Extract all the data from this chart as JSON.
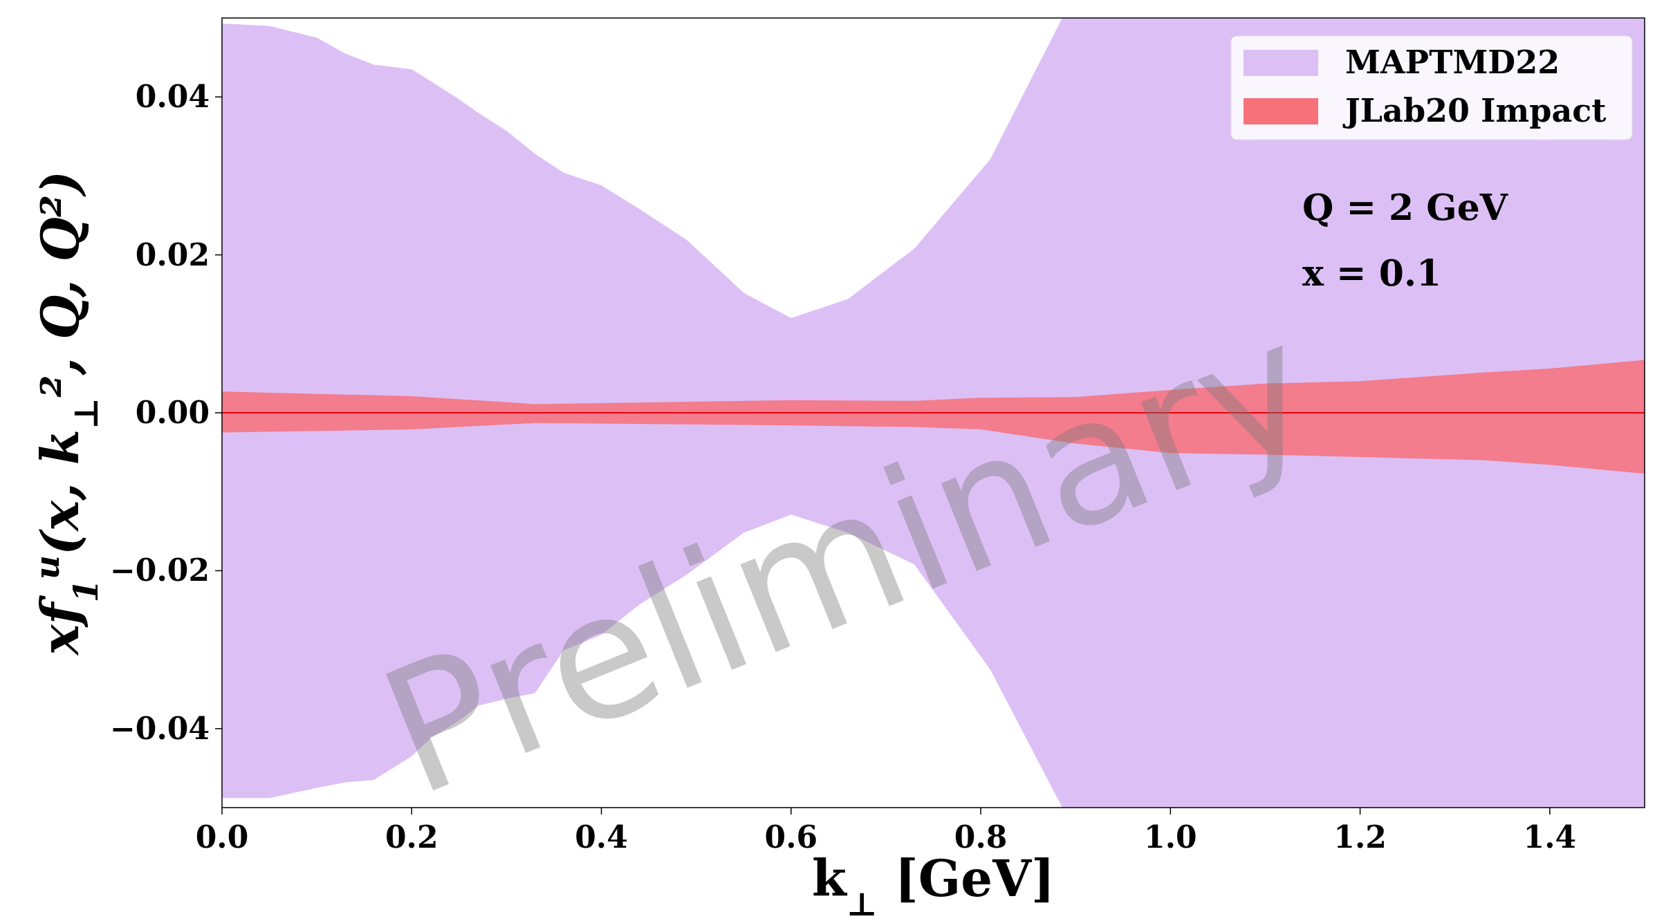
{
  "chart_data": {
    "type": "area",
    "xlabel": "k$_{⊥}$ [GeV]",
    "ylabel": "xf$_{1}$$^{u}$(x, k$_{⊥}$², Q, Q²)",
    "xlim": [
      0,
      1.5
    ],
    "ylim": [
      -0.05,
      0.05
    ],
    "xticks": [
      {
        "value": 0,
        "label": "0.0"
      },
      0.2,
      0.4,
      0.6,
      0.8,
      {
        "value": 1,
        "label": "1.0"
      },
      1.2,
      1.4
    ],
    "yticks": [
      {
        "value": -0.04,
        "label": "−0.04"
      },
      {
        "value": -0.02,
        "label": "−0.02"
      },
      {
        "value": 0,
        "label": "0.00"
      },
      {
        "value": 0.02,
        "label": "0.02"
      },
      {
        "value": 0.04,
        "label": "0.04"
      }
    ],
    "legend": "top right",
    "grid": false,
    "ref_lines": [
      {
        "axis": "y",
        "value": 0,
        "color": "#e8000b"
      }
    ],
    "annotations": [
      "Q = 2 GeV",
      "x = 0.1",
      "Preliminary"
    ],
    "series": [
      {
        "name": "MAPTMD22",
        "color": "#dcc0f5",
        "x": [
          0,
          0.05,
          0.1,
          0.13,
          0.16,
          0.2,
          0.22,
          0.25,
          0.27,
          0.3,
          0.33,
          0.36,
          0.4,
          0.44,
          0.49,
          0.55,
          0.6,
          0.66,
          0.73,
          0.81,
          0.886,
          1.0,
          1.2,
          1.5
        ],
        "values": [
          null,
          null,
          null,
          null,
          null,
          null,
          null,
          null,
          null,
          null,
          null,
          null,
          null,
          null,
          null,
          null,
          null,
          null,
          null,
          null,
          null,
          null,
          null,
          null
        ],
        "upper": [
          0.0493,
          0.049,
          0.0475,
          0.0455,
          0.0441,
          0.0435,
          0.042,
          0.0397,
          0.038,
          0.0357,
          0.0328,
          0.0304,
          0.0288,
          0.0258,
          0.0219,
          0.0152,
          0.012,
          0.0144,
          0.0208,
          0.0321,
          0.05,
          0.05,
          0.05,
          0.05
        ],
        "lower": [
          -0.0488,
          -0.0488,
          -0.0475,
          -0.0468,
          -0.0465,
          -0.0435,
          -0.0412,
          -0.039,
          -0.0371,
          -0.0362,
          -0.0355,
          -0.0301,
          -0.0281,
          -0.0243,
          -0.0205,
          -0.0152,
          -0.0129,
          -0.0152,
          -0.0192,
          -0.0325,
          -0.05,
          -0.05,
          -0.05,
          -0.05
        ]
      },
      {
        "name": "JLab20 Impact",
        "color": "#f7707a",
        "x": [
          0,
          0.2,
          0.33,
          0.6,
          0.73,
          0.8,
          0.9,
          1.0,
          1.1,
          1.2,
          1.33,
          1.4,
          1.5
        ],
        "values": [
          null,
          null,
          null,
          null,
          null,
          null,
          null,
          null,
          null,
          null,
          null,
          null,
          null
        ],
        "upper": [
          0.0027,
          0.0021,
          0.0011,
          0.0016,
          0.0015,
          0.0019,
          0.002,
          0.0029,
          0.0037,
          0.004,
          0.0051,
          0.0056,
          0.0067
        ],
        "lower": [
          -0.0025,
          -0.0021,
          -0.0013,
          -0.0016,
          -0.0018,
          -0.0021,
          -0.0039,
          -0.0051,
          -0.0053,
          -0.0056,
          -0.006,
          -0.0066,
          -0.0077
        ]
      }
    ]
  }
}
